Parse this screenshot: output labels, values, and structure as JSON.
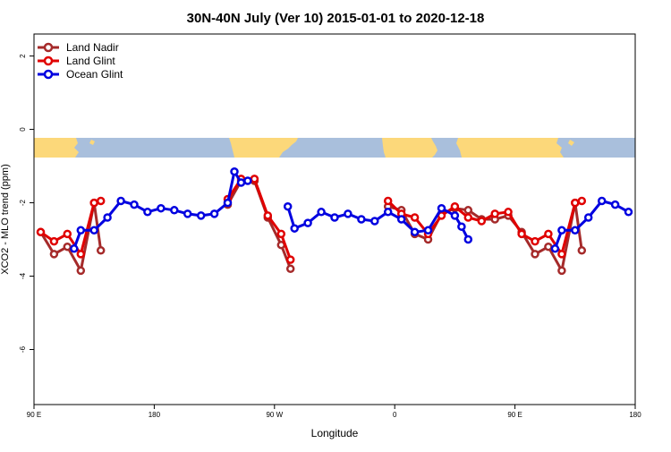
{
  "chart_data": {
    "type": "line",
    "title": "30N-40N July (Ver 10)   2015-01-01 to 2020-12-18",
    "xlabel": "Longitude",
    "ylabel": "XCO2 - MLO trend (ppm)",
    "xlim": [
      90,
      540
    ],
    "ylim": [
      -7.5,
      2.6
    ],
    "xticks": [
      {
        "value": 90,
        "label": "90 E"
      },
      {
        "value": 180,
        "label": "180"
      },
      {
        "value": 270,
        "label": "90 W"
      },
      {
        "value": 360,
        "label": "0"
      },
      {
        "value": 450,
        "label": "90 E"
      },
      {
        "value": 540,
        "label": "180"
      }
    ],
    "yticks": [
      {
        "value": 2,
        "label": "2"
      },
      {
        "value": 0,
        "label": "0"
      },
      {
        "value": -2,
        "label": "-2"
      },
      {
        "value": -4,
        "label": "-4"
      },
      {
        "value": -6,
        "label": "-6"
      }
    ],
    "legend_position": "top-left",
    "map_band": {
      "y_top": -0.2,
      "y_bottom": -0.7,
      "ocean_color": "#a9bfdc",
      "land_color": "#fcd87a"
    },
    "series": [
      {
        "name": "Land Nadir",
        "color": "#a52a2a",
        "segments": [
          [
            [
              95,
              -2.8
            ],
            [
              105,
              -3.4
            ],
            [
              115,
              -3.2
            ],
            [
              125,
              -3.85
            ],
            [
              135,
              -2.0
            ],
            [
              140,
              -3.3
            ]
          ],
          [
            [
              235,
              -2.05
            ],
            [
              245,
              -1.4
            ],
            [
              255,
              -1.4
            ],
            [
              265,
              -2.4
            ],
            [
              275,
              -3.15
            ],
            [
              282,
              -3.8
            ]
          ],
          [
            [
              355,
              -2.1
            ],
            [
              365,
              -2.2
            ],
            [
              375,
              -2.85
            ],
            [
              385,
              -3.0
            ],
            [
              395,
              -2.3
            ],
            [
              405,
              -2.15
            ],
            [
              415,
              -2.2
            ],
            [
              425,
              -2.45
            ],
            [
              435,
              -2.45
            ],
            [
              445,
              -2.35
            ],
            [
              455,
              -2.8
            ],
            [
              465,
              -3.4
            ],
            [
              475,
              -3.2
            ],
            [
              485,
              -3.85
            ],
            [
              495,
              -2.0
            ],
            [
              500,
              -3.3
            ]
          ]
        ]
      },
      {
        "name": "Land Glint",
        "color": "#e00000",
        "segments": [
          [
            [
              95,
              -2.8
            ],
            [
              105,
              -3.05
            ],
            [
              115,
              -2.85
            ],
            [
              125,
              -3.4
            ],
            [
              135,
              -2.0
            ],
            [
              140,
              -1.95
            ]
          ],
          [
            [
              235,
              -1.9
            ],
            [
              245,
              -1.35
            ],
            [
              255,
              -1.35
            ],
            [
              265,
              -2.35
            ],
            [
              275,
              -2.85
            ],
            [
              282,
              -3.55
            ]
          ],
          [
            [
              355,
              -1.95
            ],
            [
              365,
              -2.3
            ],
            [
              375,
              -2.4
            ],
            [
              385,
              -2.85
            ],
            [
              395,
              -2.35
            ],
            [
              405,
              -2.1
            ],
            [
              415,
              -2.4
            ],
            [
              425,
              -2.5
            ],
            [
              435,
              -2.3
            ],
            [
              445,
              -2.25
            ],
            [
              455,
              -2.85
            ],
            [
              465,
              -3.05
            ],
            [
              475,
              -2.85
            ],
            [
              485,
              -3.4
            ],
            [
              495,
              -2.0
            ],
            [
              500,
              -1.95
            ]
          ]
        ]
      },
      {
        "name": "Ocean Glint",
        "color": "#0000e0",
        "segments": [
          [
            [
              120,
              -3.25
            ],
            [
              125,
              -2.75
            ],
            [
              135,
              -2.75
            ],
            [
              145,
              -2.4
            ],
            [
              155,
              -1.95
            ],
            [
              165,
              -2.05
            ],
            [
              175,
              -2.25
            ],
            [
              185,
              -2.15
            ],
            [
              195,
              -2.2
            ],
            [
              205,
              -2.3
            ],
            [
              215,
              -2.35
            ],
            [
              225,
              -2.3
            ],
            [
              235,
              -2.0
            ],
            [
              240,
              -1.15
            ],
            [
              245,
              -1.45
            ],
            [
              250,
              -1.4
            ]
          ],
          [
            [
              280,
              -2.1
            ],
            [
              285,
              -2.7
            ],
            [
              295,
              -2.55
            ],
            [
              305,
              -2.25
            ],
            [
              315,
              -2.4
            ],
            [
              325,
              -2.3
            ],
            [
              335,
              -2.45
            ],
            [
              345,
              -2.5
            ],
            [
              355,
              -2.25
            ],
            [
              365,
              -2.45
            ],
            [
              375,
              -2.8
            ],
            [
              385,
              -2.75
            ],
            [
              395,
              -2.15
            ],
            [
              405,
              -2.35
            ],
            [
              410,
              -2.65
            ],
            [
              415,
              -3.0
            ]
          ],
          [
            [
              480,
              -3.25
            ],
            [
              485,
              -2.75
            ],
            [
              495,
              -2.75
            ],
            [
              505,
              -2.4
            ],
            [
              515,
              -1.95
            ],
            [
              525,
              -2.05
            ],
            [
              535,
              -2.25
            ]
          ]
        ]
      }
    ]
  }
}
